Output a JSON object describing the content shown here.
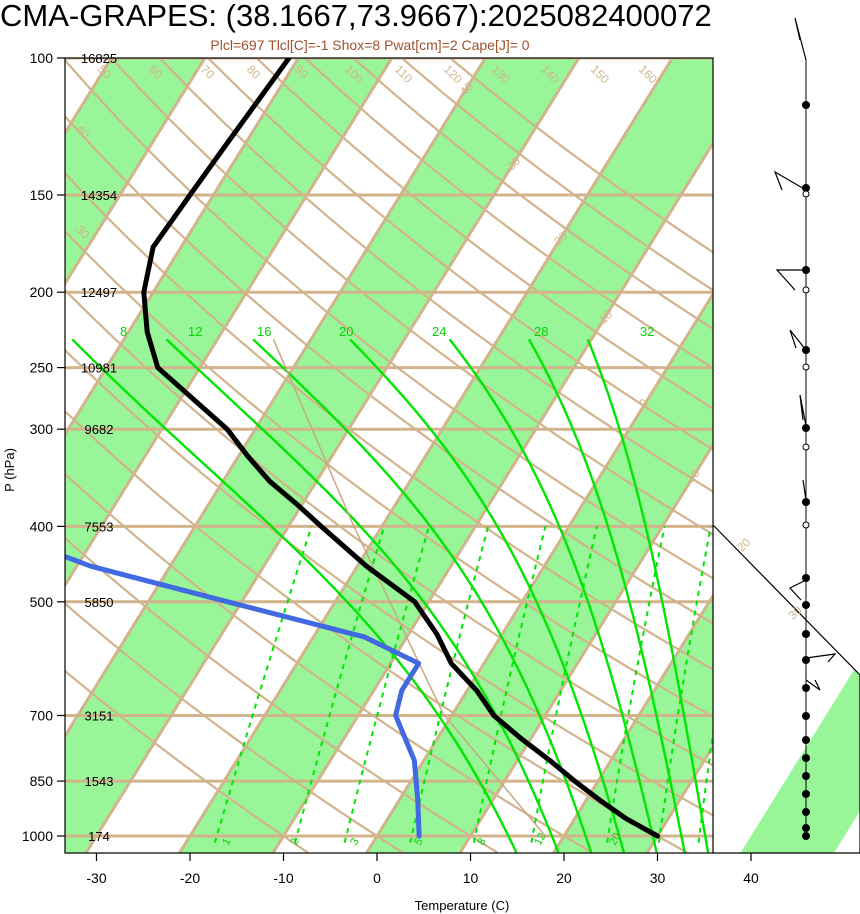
{
  "title": "CMA-GRAPES: (38.1667,73.9667):2025082400072",
  "subtitle": "Plcl=697 Tlcl[C]=-1 Shox=8 Pwat[cm]=2 Cape[J]= 0",
  "colors": {
    "band": "#98f598",
    "isoline": "#d2b48c",
    "dry_adiabat": "#d2b48c",
    "moist_adiabat": "#00e600",
    "mixing_ratio": "#00e600",
    "temperature": "#000000",
    "dewpoint": "#4169e1"
  },
  "chart_data": {
    "type": "skew-t",
    "xlabel": "Temperature (C)",
    "ylabel": "P (hPa)",
    "x_ticks": [
      -30,
      -20,
      -10,
      0,
      10,
      20,
      30,
      40
    ],
    "x_range": [
      -34,
      46
    ],
    "y_range": [
      1050,
      100
    ],
    "log_y": true,
    "pressure_levels": [
      100,
      150,
      200,
      250,
      300,
      400,
      500,
      700,
      850,
      1000
    ],
    "heights": [
      {
        "p": 100,
        "z": "16825"
      },
      {
        "p": 150,
        "z": "14354"
      },
      {
        "p": 200,
        "z": "12497"
      },
      {
        "p": 250,
        "z": "10981"
      },
      {
        "p": 300,
        "z": "9682"
      },
      {
        "p": 400,
        "z": "7553"
      },
      {
        "p": 500,
        "z": "5850"
      },
      {
        "p": 700,
        "z": "3151"
      },
      {
        "p": 850,
        "z": "1543"
      },
      {
        "p": 1000,
        "z": "174"
      }
    ],
    "isotherm_labels": [
      {
        "t": -40,
        "text": "-40",
        "p": 113
      },
      {
        "t": -30,
        "text": "-30",
        "p": 141
      },
      {
        "t": -20,
        "text": "-20",
        "p": 176
      },
      {
        "t": -10,
        "text": "-10",
        "p": 222
      },
      {
        "t": 0,
        "text": "0",
        "p": 282
      },
      {
        "t": 10,
        "text": "10",
        "p": 352
      },
      {
        "t": 20,
        "text": "20",
        "p": 432
      },
      {
        "t": 30,
        "text": "30",
        "p": 528
      }
    ],
    "dry_adiabat_labels": [
      "30",
      "40",
      "50",
      "60",
      "70",
      "80",
      "90",
      "100",
      "110",
      "120",
      "130",
      "140",
      "150",
      "160"
    ],
    "moist_adiabat_labels": [
      "8",
      "12",
      "16",
      "20",
      "24",
      "28",
      "32"
    ],
    "mixing_ratio_labels": [
      "1",
      "2",
      "3",
      "5",
      "8",
      "12",
      "20"
    ],
    "series": [
      {
        "name": "T",
        "points": [
          [
            100,
            -61
          ],
          [
            130,
            -62
          ],
          [
            150,
            -62.5
          ],
          [
            175,
            -63
          ],
          [
            200,
            -61
          ],
          [
            225,
            -58
          ],
          [
            250,
            -54.5
          ],
          [
            275,
            -48.5
          ],
          [
            300,
            -43
          ],
          [
            325,
            -39
          ],
          [
            350,
            -35
          ],
          [
            375,
            -30.5
          ],
          [
            400,
            -26.5
          ],
          [
            450,
            -19
          ],
          [
            500,
            -11.5
          ],
          [
            550,
            -7
          ],
          [
            600,
            -3.5
          ],
          [
            650,
            1
          ],
          [
            700,
            4.5
          ],
          [
            750,
            9
          ],
          [
            800,
            13.5
          ],
          [
            850,
            17.5
          ],
          [
            900,
            21.5
          ],
          [
            950,
            25.5
          ],
          [
            1000,
            30
          ]
        ]
      },
      {
        "name": "Td",
        "points": [
          [
            100,
            -87
          ],
          [
            130,
            -93
          ],
          [
            150,
            -97.5
          ],
          [
            175,
            -93
          ],
          [
            200,
            -92
          ],
          [
            225,
            -90
          ],
          [
            250,
            -86
          ],
          [
            275,
            -84
          ],
          [
            300,
            -80
          ],
          [
            350,
            -75
          ],
          [
            400,
            -62.5
          ],
          [
            450,
            -48.5
          ],
          [
            500,
            -31.5
          ],
          [
            555,
            -14.5
          ],
          [
            600,
            -7
          ],
          [
            650,
            -7
          ],
          [
            700,
            -6
          ],
          [
            800,
            -1
          ],
          [
            900,
            2
          ],
          [
            1000,
            4.5
          ]
        ]
      }
    ],
    "wind_barb_levels": [
      100,
      150,
      200,
      250,
      300,
      400,
      500,
      700,
      850,
      1000
    ]
  }
}
